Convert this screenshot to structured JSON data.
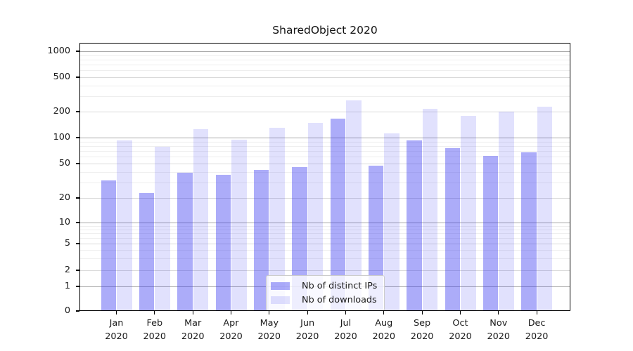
{
  "chart_data": {
    "type": "bar",
    "title": "SharedObject 2020",
    "categories": [
      {
        "month": "Jan",
        "year": "2020"
      },
      {
        "month": "Feb",
        "year": "2020"
      },
      {
        "month": "Mar",
        "year": "2020"
      },
      {
        "month": "Apr",
        "year": "2020"
      },
      {
        "month": "May",
        "year": "2020"
      },
      {
        "month": "Jun",
        "year": "2020"
      },
      {
        "month": "Jul",
        "year": "2020"
      },
      {
        "month": "Aug",
        "year": "2020"
      },
      {
        "month": "Sep",
        "year": "2020"
      },
      {
        "month": "Oct",
        "year": "2020"
      },
      {
        "month": "Nov",
        "year": "2020"
      },
      {
        "month": "Dec",
        "year": "2020"
      }
    ],
    "series": [
      {
        "name": "Nb of distinct IPs",
        "color": "#2f2fef66",
        "values": [
          32,
          23,
          39,
          37,
          42,
          46,
          165,
          47,
          93,
          76,
          62,
          68
        ]
      },
      {
        "name": "Nb of downloads",
        "color": "#2f2fef25",
        "values": [
          93,
          78,
          125,
          95,
          130,
          148,
          270,
          112,
          215,
          180,
          200,
          230
        ]
      }
    ],
    "yscale": "symlog",
    "yticks": [
      0,
      1,
      2,
      5,
      10,
      20,
      50,
      100,
      200,
      500,
      1000
    ],
    "ylim": [
      0,
      1200
    ],
    "grid": true,
    "legend_position": "lower center",
    "colors": {
      "bar_dark_rendered": "#acacf9",
      "bar_light_rendered": "#e1e1fd",
      "grid_major": "#a8a8a8",
      "grid_minor": "#eeeeee",
      "axis": "#000000"
    }
  }
}
